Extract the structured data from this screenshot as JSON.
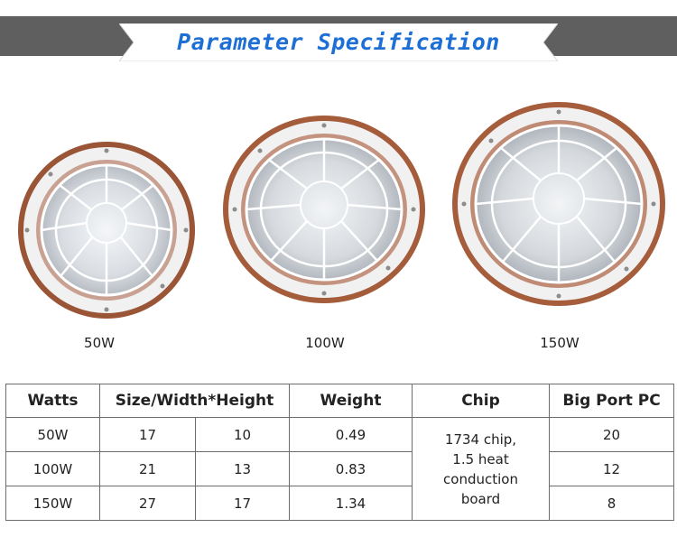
{
  "banner": {
    "title": "Parameter Specification"
  },
  "colors": {
    "banner_bar": "#5f5f5f",
    "title": "#1d6fd6",
    "lamp_rim": "#a9603f"
  },
  "products": [
    {
      "label": "50W"
    },
    {
      "label": "100W"
    },
    {
      "label": "150W"
    }
  ],
  "table": {
    "headers": {
      "watts": "Watts",
      "size": "Size/Width*Height",
      "weight": "Weight",
      "chip": "Chip",
      "port": "Big Port PC"
    },
    "chip_lines": [
      "1734 chip,",
      "1.5 heat",
      "conduction",
      "board"
    ],
    "rows": [
      {
        "watts": "50W",
        "width": "17",
        "height": "10",
        "weight": "0.49",
        "port": "20"
      },
      {
        "watts": "100W",
        "width": "21",
        "height": "13",
        "weight": "0.83",
        "port": "12"
      },
      {
        "watts": "150W",
        "width": "27",
        "height": "17",
        "weight": "1.34",
        "port": "8"
      }
    ]
  }
}
